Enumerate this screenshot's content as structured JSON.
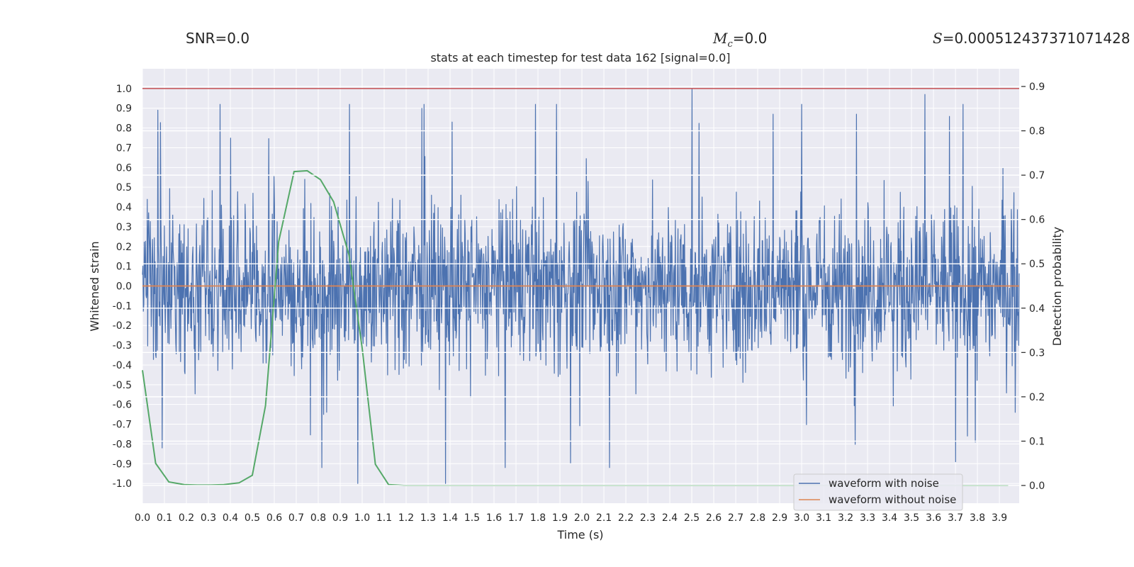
{
  "stats": {
    "snr_label": "SNR=0.0",
    "mc_symbol": "M",
    "mc_sub": "c",
    "mc_value": "=0.0",
    "s_symbol": "S",
    "s_value": "=0.000512437371071428"
  },
  "chart_data": {
    "type": "line",
    "title": "stats at each timestep for test data 162 [signal=0.0]",
    "xlabel": "Time (s)",
    "ylabel": "Whitened strain",
    "y2label": "Detection probability",
    "xlim": [
      0.0,
      3.99
    ],
    "ylim": [
      -1.1,
      1.1
    ],
    "y2lim": [
      -0.04,
      0.94
    ],
    "x_ticks": [
      "0.0",
      "0.1",
      "0.2",
      "0.3",
      "0.4",
      "0.5",
      "0.6",
      "0.7",
      "0.8",
      "0.9",
      "1.0",
      "1.1",
      "1.2",
      "1.3",
      "1.4",
      "1.5",
      "1.6",
      "1.7",
      "1.8",
      "1.9",
      "2.0",
      "2.1",
      "2.2",
      "2.3",
      "2.4",
      "2.5",
      "2.6",
      "2.7",
      "2.8",
      "2.9",
      "3.0",
      "3.1",
      "3.2",
      "3.3",
      "3.4",
      "3.5",
      "3.6",
      "3.7",
      "3.8",
      "3.9"
    ],
    "y_ticks": [
      "1.0",
      "0.9",
      "0.8",
      "0.7",
      "0.6",
      "0.5",
      "0.4",
      "0.3",
      "0.2",
      "0.1",
      "0.0",
      "-0.1",
      "-0.2",
      "-0.3",
      "-0.4",
      "-0.5",
      "-0.6",
      "-0.7",
      "-0.8",
      "-0.9",
      "-1.0"
    ],
    "y2_ticks": [
      "0.9",
      "0.8",
      "0.7",
      "0.6",
      "0.5",
      "0.4",
      "0.3",
      "0.2",
      "0.1",
      "0.0"
    ],
    "grid": true,
    "legend_position": "lower-right",
    "series": [
      {
        "name": "waveform with noise",
        "color": "#4c72b0",
        "axis": "left",
        "note_shape": "dense noise centered on 0",
        "max_y": 1.0,
        "min_y": -1.0,
        "spikes": [
          {
            "x": 0.07,
            "y": 0.94
          },
          {
            "x": 0.07,
            "y": 0.89
          },
          {
            "x": 0.09,
            "y": -0.82
          },
          {
            "x": 0.98,
            "y": -1.0
          },
          {
            "x": 1.38,
            "y": -1.0
          },
          {
            "x": 1.41,
            "y": 0.83
          },
          {
            "x": 2.5,
            "y": 1.0
          },
          {
            "x": 2.87,
            "y": 0.87
          },
          {
            "x": 3.25,
            "y": 0.87
          },
          {
            "x": 3.56,
            "y": 0.97
          },
          {
            "x": 3.7,
            "y": -0.89
          },
          {
            "x": 3.79,
            "y": -0.79
          }
        ]
      },
      {
        "name": "waveform without noise",
        "color": "#dd8452",
        "axis": "left",
        "x": [
          0.0,
          3.99
        ],
        "y": [
          0.0,
          0.0
        ]
      },
      {
        "name": "",
        "color": "#55a868",
        "axis": "right",
        "x": [
          0.0,
          0.06,
          0.12,
          0.19,
          0.25,
          0.31,
          0.37,
          0.44,
          0.5,
          0.56,
          0.62,
          0.69,
          0.75,
          0.81,
          0.87,
          0.94,
          1.0,
          1.06,
          1.12,
          1.19,
          1.25,
          1.31,
          3.94
        ],
        "y": [
          0.26,
          0.05,
          0.008,
          0.002,
          0.001,
          0.001,
          0.002,
          0.006,
          0.023,
          0.18,
          0.55,
          0.708,
          0.71,
          0.69,
          0.64,
          0.52,
          0.31,
          0.048,
          0.002,
          0.0,
          0.0,
          0.0,
          0.0
        ]
      }
    ],
    "hlines": [
      {
        "axis": "left",
        "y": 1.0,
        "color": "#c44e52"
      }
    ]
  }
}
